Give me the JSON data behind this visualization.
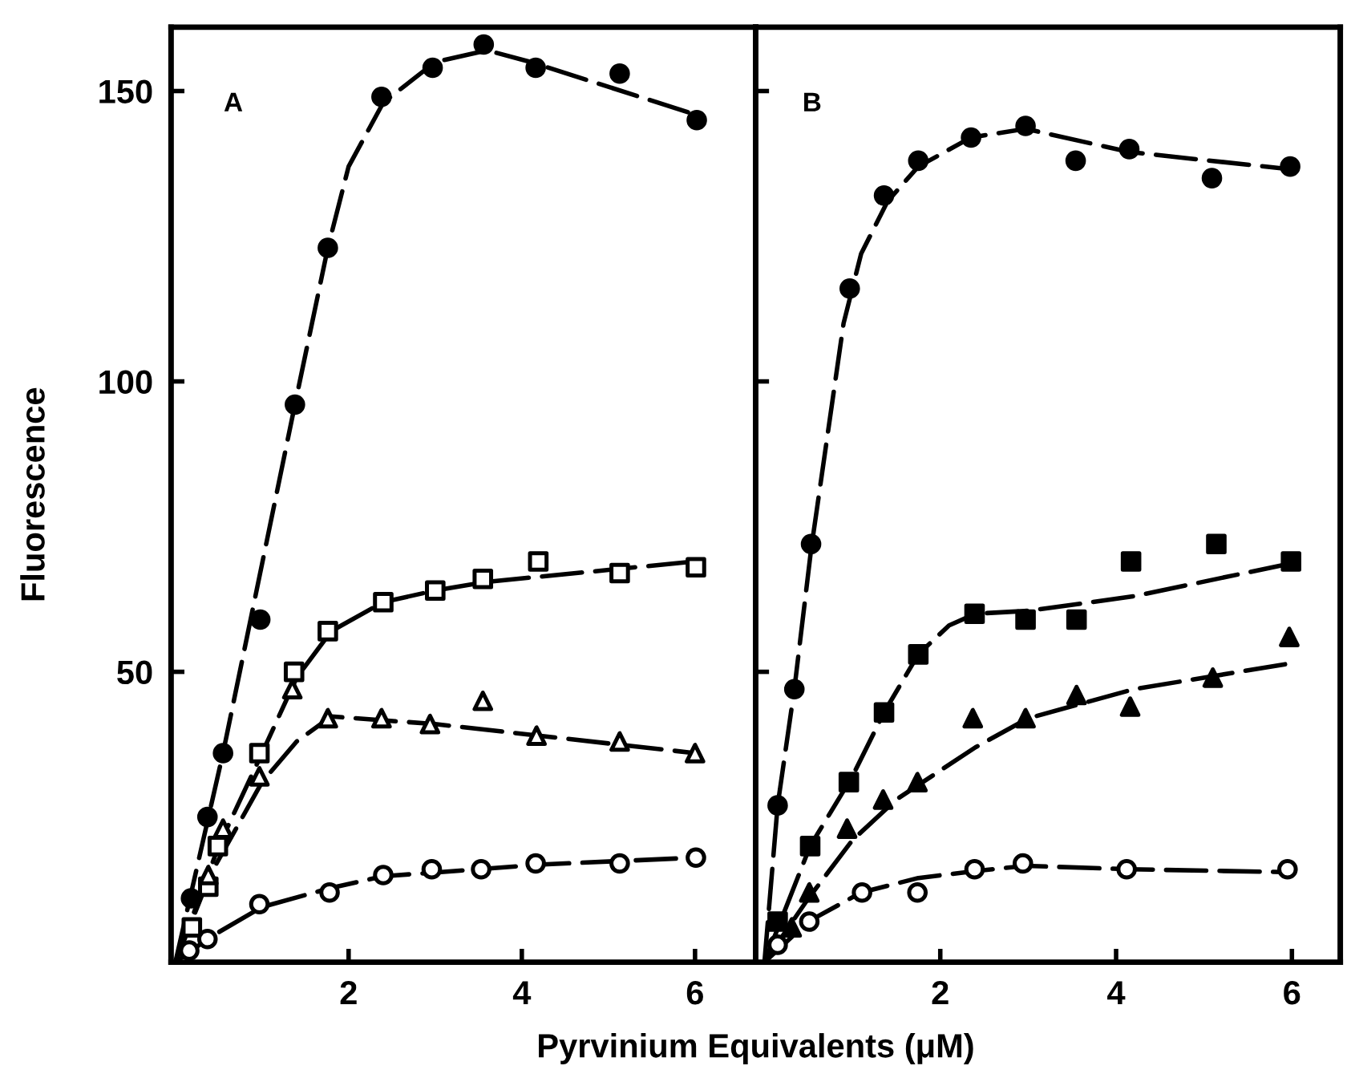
{
  "chart_data": [
    {
      "type": "scatter",
      "xlabel": "Pyrvinium Equivalents (μM)",
      "ylabel": "Fluorescence",
      "annotations": [
        "A"
      ],
      "xlim": [
        -0.05,
        6.7
      ],
      "ylim": [
        0,
        161
      ],
      "xticks": [
        2,
        4,
        6
      ],
      "yticks": [
        50,
        100,
        150
      ],
      "grid": false,
      "legend": false,
      "series": [
        {
          "type": "line",
          "color": "#000000",
          "line_style": "dashed",
          "marker": "none",
          "x": [
            0,
            0.55,
            1.38,
            1.76,
            2.0,
            2.4,
            3.0,
            3.6,
            4.1,
            6.1
          ],
          "values": [
            0,
            36,
            96,
            123,
            137,
            148,
            155,
            157,
            155,
            145.5
          ]
        },
        {
          "type": "line",
          "color": "#000000",
          "line_style": "dashed",
          "marker": "none",
          "x": [
            0,
            0.5,
            1.0,
            1.4,
            1.8,
            2.4,
            3.0,
            3.6,
            6.0
          ],
          "values": [
            0,
            20,
            36,
            49,
            57,
            62,
            64,
            65.5,
            69
          ]
        },
        {
          "type": "line",
          "color": "#000000",
          "line_style": "dashed",
          "marker": "none",
          "x": [
            0,
            0.4,
            1.0,
            1.4,
            1.8,
            3.0,
            6.0
          ],
          "values": [
            0,
            15,
            31,
            38,
            42.3,
            41,
            36
          ]
        },
        {
          "type": "line",
          "color": "#000000",
          "line_style": "dashed",
          "marker": "none",
          "x": [
            0,
            0.4,
            1.0,
            1.8,
            2.4,
            3.5,
            4.2,
            6.0
          ],
          "values": [
            0,
            4.3,
            9.5,
            12.8,
            14.8,
            16,
            16.8,
            18
          ]
        },
        {
          "color": "#000000",
          "marker": "circle",
          "x": [
            0.18,
            0.37,
            0.55,
            0.98,
            1.38,
            1.76,
            2.38,
            2.97,
            3.56,
            4.16,
            5.13,
            6.02
          ],
          "values": [
            11,
            25,
            36,
            59,
            96,
            123,
            149,
            154,
            158,
            154,
            153,
            145
          ]
        },
        {
          "color": "#ffffff",
          "marker": "square",
          "x": [
            0.19,
            0.38,
            0.49,
            0.97,
            1.37,
            1.76,
            2.4,
            3.0,
            3.55,
            4.19,
            5.13,
            6.01
          ],
          "values": [
            6,
            13,
            20,
            36,
            50,
            57,
            62,
            64,
            66,
            69,
            67,
            68
          ]
        },
        {
          "color": "#ffffff",
          "marker": "triangle",
          "x": [
            0.38,
            0.55,
            0.97,
            1.35,
            1.76,
            2.38,
            2.94,
            3.55,
            4.17,
            5.13,
            6.0
          ],
          "values": [
            15,
            23,
            32,
            47,
            42,
            42,
            41,
            45,
            39,
            38,
            36
          ]
        },
        {
          "color": "#ffffff",
          "marker": "circle",
          "x": [
            0.16,
            0.37,
            0.97,
            1.78,
            2.4,
            2.96,
            3.53,
            4.16,
            5.13,
            6.01
          ],
          "values": [
            2,
            4,
            10,
            12,
            15,
            16,
            16,
            17,
            17,
            18
          ]
        }
      ]
    },
    {
      "type": "scatter",
      "annotations": [
        "B"
      ],
      "tick_labels": "x",
      "xlim": [
        -0.1,
        6.55
      ],
      "ylim": [
        0,
        161
      ],
      "xticks": [
        2,
        4,
        6
      ],
      "yticks": [
        50,
        100,
        150
      ],
      "grid": false,
      "legend": false,
      "series": [
        {
          "type": "line",
          "color": "#000000",
          "line_style": "dashed",
          "marker": "none",
          "x": [
            0,
            0.15,
            0.34,
            0.53,
            0.9,
            1.1,
            1.4,
            1.75,
            2.35,
            2.97,
            4.15,
            6.0
          ],
          "values": [
            0,
            27,
            47,
            71,
            110,
            122,
            131,
            137,
            142,
            143.5,
            139.5,
            136.5
          ]
        },
        {
          "type": "line",
          "color": "#000000",
          "line_style": "dashed",
          "marker": "none",
          "x": [
            0,
            0.52,
            1.0,
            1.36,
            1.75,
            2.1,
            2.4,
            3.0,
            4.2,
            6.0
          ],
          "values": [
            0,
            20,
            32,
            43,
            53,
            58,
            60,
            60.5,
            63,
            68.7
          ]
        },
        {
          "type": "line",
          "color": "#000000",
          "line_style": "dashed",
          "marker": "none",
          "x": [
            0,
            0.5,
            1.0,
            1.5,
            2.4,
            3.0,
            4.2,
            6.0
          ],
          "values": [
            0,
            11,
            21,
            28,
            37,
            42,
            47,
            51.5
          ]
        },
        {
          "type": "line",
          "color": "#000000",
          "line_style": "dashed",
          "marker": "none",
          "x": [
            0,
            0.5,
            1.1,
            1.75,
            2.4,
            2.97,
            4.15,
            6.0
          ],
          "values": [
            0,
            7,
            12,
            14.5,
            15.7,
            16.6,
            16,
            15.5
          ]
        },
        {
          "color": "#000000",
          "marker": "circle",
          "x": [
            0.15,
            0.34,
            0.53,
            0.97,
            1.36,
            1.75,
            2.35,
            2.97,
            3.54,
            4.15,
            5.09,
            5.98
          ],
          "values": [
            27,
            47,
            72,
            116,
            132,
            138,
            142,
            144,
            138,
            140,
            135,
            137
          ]
        },
        {
          "color": "#000000",
          "marker": "square",
          "x": [
            0.15,
            0.52,
            0.96,
            1.36,
            1.75,
            2.39,
            2.97,
            3.55,
            4.17,
            5.14,
            5.99
          ],
          "values": [
            7,
            20,
            31,
            43,
            53,
            60,
            59,
            59,
            69,
            72,
            69
          ]
        },
        {
          "color": "#000000",
          "marker": "triangle",
          "x": [
            0.31,
            0.51,
            0.94,
            1.35,
            1.74,
            2.37,
            2.97,
            3.55,
            4.16,
            5.1,
            5.97
          ],
          "values": [
            6,
            12,
            23,
            28,
            31,
            42,
            42,
            46,
            44,
            49,
            56
          ]
        },
        {
          "color": "#ffffff",
          "marker": "circle",
          "x": [
            0.15,
            0.51,
            1.11,
            1.74,
            2.39,
            2.94,
            4.12,
            5.95
          ],
          "values": [
            3,
            7,
            12,
            12,
            16,
            17,
            16,
            16
          ]
        }
      ]
    }
  ]
}
